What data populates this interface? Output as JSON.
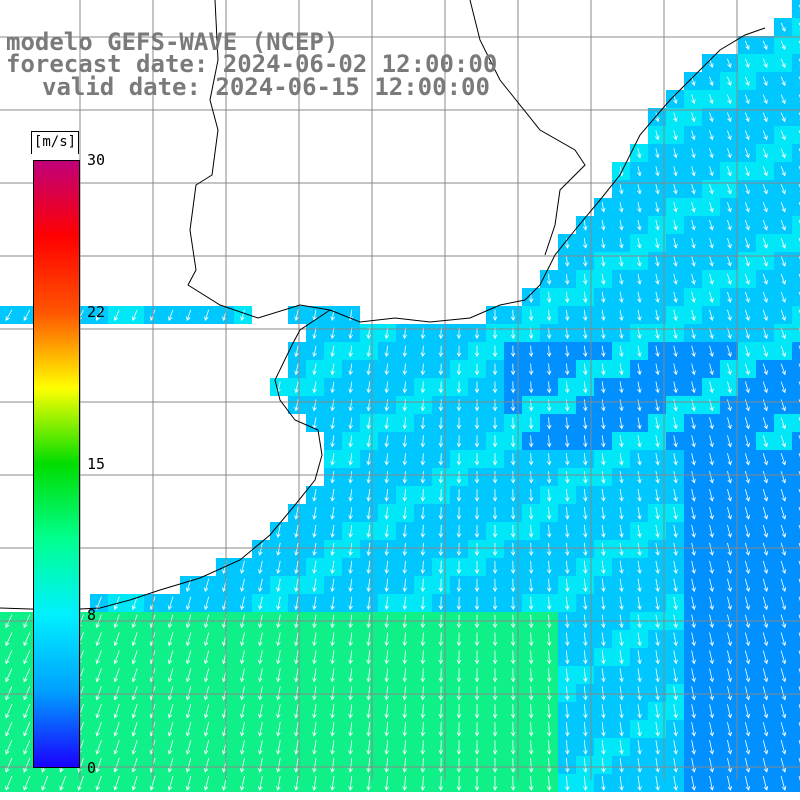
{
  "header": {
    "line1": "modelo GEFS-WAVE (NCEP)",
    "line2": "forecast date: 2024-06-02 12:00:00",
    "line3": "valid date: 2024-06-15 12:00:00"
  },
  "colorbar": {
    "units": "[m/s]",
    "ticks": [
      {
        "label": "30",
        "value": 30
      },
      {
        "label": "22",
        "value": 22
      },
      {
        "label": "15",
        "value": 15
      },
      {
        "label": "8",
        "value": 8
      },
      {
        "label": "0",
        "value": 0
      }
    ],
    "colors": [
      "#1a00ff",
      "#00a0ff",
      "#00f0ff",
      "#00ff90",
      "#00dd00",
      "#ffff00",
      "#ff5500",
      "#ff0000",
      "#c0007a"
    ]
  },
  "map": {
    "ocean_colors": {
      "calm": "#00c8ff",
      "mid": "#00e8f8",
      "strong": "#10f088",
      "deep": "#0090ff"
    },
    "land_color": "#ffffff",
    "coast_color": "#000000",
    "grid_color": "#888888",
    "arrow_color": "#ffffff"
  }
}
